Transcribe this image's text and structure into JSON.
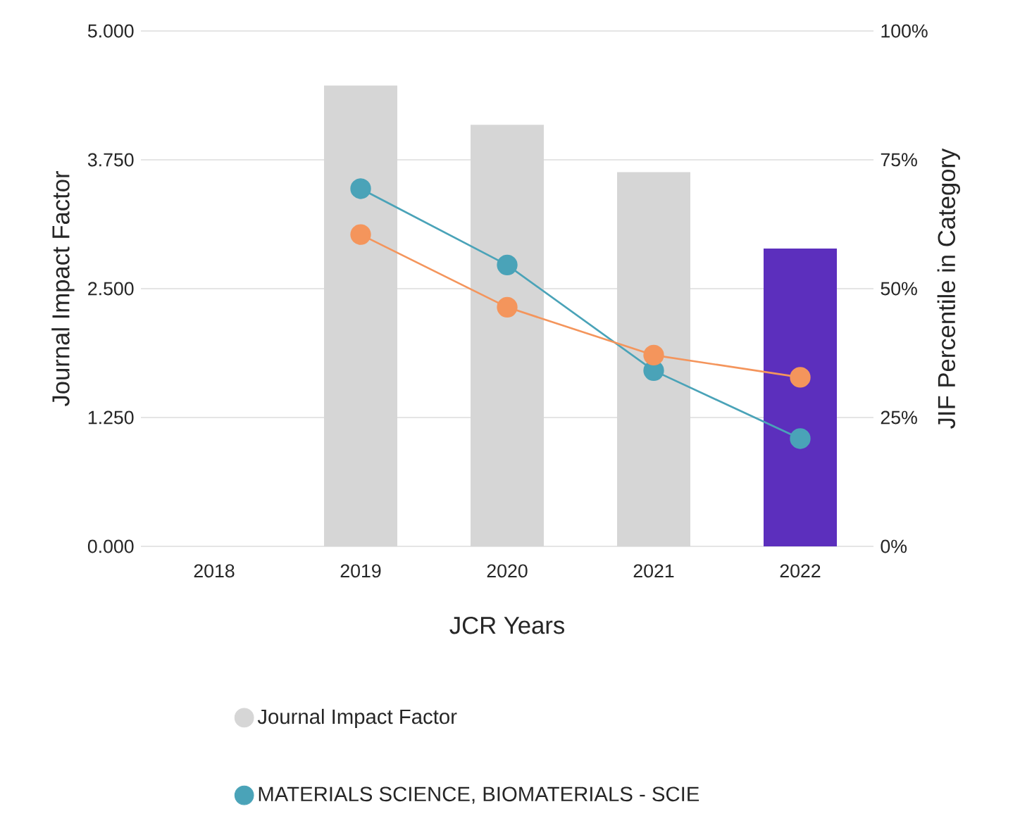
{
  "chart_data": {
    "type": "bar",
    "xlabel": "JCR Years",
    "ylabel": "Journal Impact Factor",
    "y2label": "JIF Percentile in Category",
    "categories": [
      "2018",
      "2019",
      "2020",
      "2021",
      "2022"
    ],
    "series": [
      {
        "name": "Journal Impact Factor",
        "values": [
          null,
          4.47,
          4.09,
          3.63,
          2.89
        ],
        "colors": [
          "#d6d6d6",
          "#d6d6d6",
          "#d6d6d6",
          "#d6d6d6",
          "#5c2fbd"
        ]
      },
      {
        "name": "MATERIALS SCIENCE, BIOMATERIALS - SCIE",
        "type": "line",
        "axis": "y2",
        "color": "#4aa3b8",
        "values": [
          null,
          69.4,
          54.6,
          34.1,
          20.9
        ]
      },
      {
        "type": "line",
        "axis": "y2",
        "color": "#f4955c",
        "values": [
          null,
          60.5,
          46.4,
          37.1,
          32.8
        ]
      }
    ],
    "ylim": [
      0,
      5
    ],
    "yticks": [
      {
        "value": 0,
        "label": "0.000"
      },
      {
        "value": 1.25,
        "label": "1.250"
      },
      {
        "value": 2.5,
        "label": "2.500"
      },
      {
        "value": 3.75,
        "label": "3.750"
      },
      {
        "value": 5,
        "label": "5.000"
      }
    ],
    "y2lim": [
      0,
      100
    ],
    "y2ticks": [
      {
        "value": 0,
        "label": "0%"
      },
      {
        "value": 25,
        "label": "25%"
      },
      {
        "value": 50,
        "label": "50%"
      },
      {
        "value": 75,
        "label": "75%"
      },
      {
        "value": 100,
        "label": "100%"
      }
    ],
    "grid": "y",
    "legend": "bottom",
    "marker": "circle",
    "line_style": "solid"
  }
}
